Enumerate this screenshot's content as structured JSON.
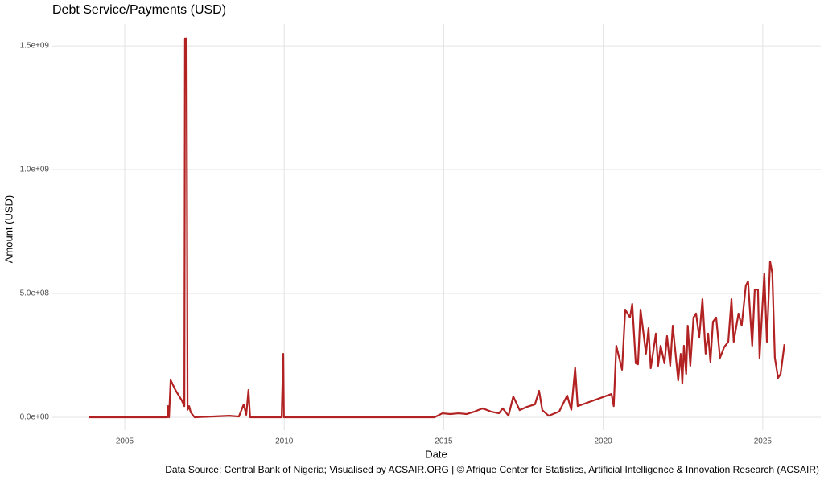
{
  "chart_data": {
    "type": "line",
    "title": "Debt Service/Payments (USD)",
    "x_label": "Date",
    "y_label": "Amount (USD)",
    "caption": "Data Source: Central Bank of Nigeria; Visualised by ACSAIR.ORG | © Afrique Center for Statistics, Artificial Intelligence & Innovation Research (ACSAIR)",
    "xlim": [
      2002.73,
      2026.82
    ],
    "xticks": [
      2005,
      2010,
      2015,
      2020,
      2025
    ],
    "ylim": [
      -52000000,
      1588000000
    ],
    "yticks": [
      {
        "value": 0,
        "label": "0.0e+00"
      },
      {
        "value": 500000000,
        "label": "5.0e+08"
      },
      {
        "value": 1000000000,
        "label": "1.0e+09"
      },
      {
        "value": 1500000000,
        "label": "1.5e+09"
      }
    ],
    "grid": true,
    "series": [
      {
        "color": "#b22222",
        "x": [
          2003.87,
          2006.34,
          2006.36,
          2006.39,
          2006.44,
          2006.59,
          2006.79,
          2006.87,
          2006.89,
          2006.94,
          2006.97,
          2007.02,
          2007.07,
          2007.19,
          2008.28,
          2008.58,
          2008.73,
          2008.81,
          2008.88,
          2008.93,
          2009.92,
          2009.97,
          2009.99,
          2014.71,
          2014.96,
          2015.21,
          2015.47,
          2015.72,
          2015.97,
          2016.22,
          2016.48,
          2016.73,
          2016.85,
          2017.03,
          2017.18,
          2017.38,
          2017.61,
          2017.86,
          2017.99,
          2018.09,
          2018.29,
          2018.62,
          2018.87,
          2019.0,
          2019.12,
          2019.2,
          2020.26,
          2020.33,
          2020.41,
          2020.59,
          2020.69,
          2020.84,
          2020.91,
          2021.02,
          2021.09,
          2021.17,
          2021.34,
          2021.42,
          2021.49,
          2021.65,
          2021.72,
          2021.8,
          2021.92,
          2022.0,
          2022.1,
          2022.18,
          2022.35,
          2022.43,
          2022.48,
          2022.53,
          2022.6,
          2022.65,
          2022.73,
          2022.83,
          2022.91,
          2023.01,
          2023.11,
          2023.21,
          2023.29,
          2023.36,
          2023.44,
          2023.54,
          2023.66,
          2023.79,
          2023.92,
          2024.02,
          2024.09,
          2024.24,
          2024.34,
          2024.47,
          2024.54,
          2024.67,
          2024.75,
          2024.85,
          2024.9,
          2024.97,
          2025.05,
          2025.13,
          2025.23,
          2025.3,
          2025.38,
          2025.48,
          2025.56,
          2025.68
        ],
        "values": [
          0,
          0,
          45000000,
          0,
          150000000,
          110000000,
          68000000,
          45000000,
          1530000000,
          1530000000,
          30000000,
          45000000,
          20000000,
          0,
          6000000,
          3000000,
          52000000,
          10000000,
          110000000,
          0,
          0,
          256000000,
          0,
          0,
          16000000,
          13000000,
          16000000,
          13000000,
          23000000,
          36000000,
          23000000,
          16000000,
          36000000,
          6000000,
          84000000,
          29000000,
          42000000,
          52000000,
          107000000,
          29000000,
          6000000,
          23000000,
          88000000,
          30000000,
          200000000,
          45000000,
          94000000,
          45000000,
          289000000,
          192000000,
          435000000,
          403000000,
          458000000,
          218000000,
          214000000,
          435000000,
          257000000,
          360000000,
          198000000,
          338000000,
          208000000,
          289000000,
          218000000,
          328000000,
          208000000,
          370000000,
          149000000,
          256000000,
          136000000,
          289000000,
          175000000,
          370000000,
          208000000,
          403000000,
          419000000,
          322000000,
          477000000,
          257000000,
          338000000,
          224000000,
          386000000,
          403000000,
          240000000,
          283000000,
          305000000,
          477000000,
          305000000,
          419000000,
          370000000,
          532000000,
          549000000,
          289000000,
          516000000,
          516000000,
          240000000,
          403000000,
          581000000,
          305000000,
          630000000,
          581000000,
          240000000,
          159000000,
          175000000,
          295000000
        ]
      }
    ]
  }
}
